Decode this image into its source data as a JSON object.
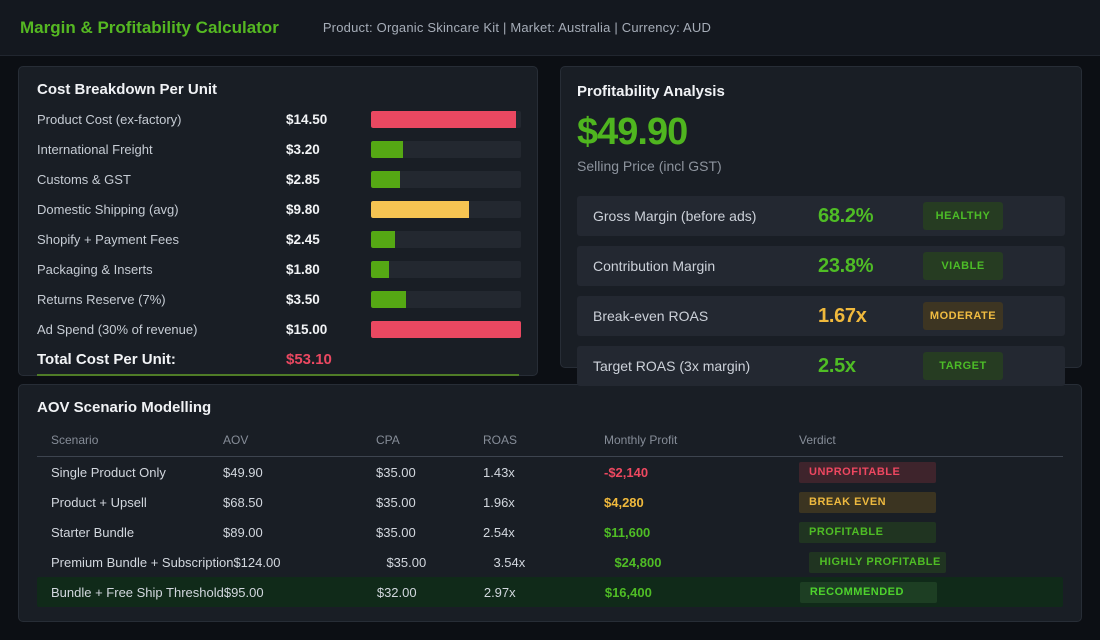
{
  "header": {
    "title": "Margin & Profitability Calculator",
    "meta": "Product: Organic Skincare Kit  |  Market: Australia  |  Currency: AUD"
  },
  "cost_panel": {
    "title": "Cost Breakdown Per Unit",
    "bar_max_value": 15.0,
    "items": [
      {
        "label": "Product Cost (ex-factory)",
        "value": "$14.50",
        "amount": 14.5,
        "pct": 96.7,
        "tone": "red"
      },
      {
        "label": "International Freight",
        "value": "$3.20",
        "amount": 3.2,
        "pct": 21.3,
        "tone": "green"
      },
      {
        "label": "Customs & GST",
        "value": "$2.85",
        "amount": 2.85,
        "pct": 19.0,
        "tone": "green"
      },
      {
        "label": "Domestic Shipping (avg)",
        "value": "$9.80",
        "amount": 9.8,
        "pct": 65.3,
        "tone": "amber"
      },
      {
        "label": "Shopify + Payment Fees",
        "value": "$2.45",
        "amount": 2.45,
        "pct": 16.3,
        "tone": "green"
      },
      {
        "label": "Packaging & Inserts",
        "value": "$1.80",
        "amount": 1.8,
        "pct": 12.0,
        "tone": "green"
      },
      {
        "label": "Returns Reserve (7%)",
        "value": "$3.50",
        "amount": 3.5,
        "pct": 23.3,
        "tone": "green"
      },
      {
        "label": "Ad Spend (30% of revenue)",
        "value": "$15.00",
        "amount": 15.0,
        "pct": 100,
        "tone": "red"
      }
    ],
    "total_label": "Total Cost Per Unit:",
    "total_value": "$53.10"
  },
  "profit_panel": {
    "title": "Profitability Analysis",
    "price": "$49.90",
    "price_sub": "Selling Price (incl GST)",
    "metrics": [
      {
        "label": "Gross Margin (before ads)",
        "value": "68.2%",
        "tone": "green",
        "badge": "HEALTHY",
        "badge_tone": "green"
      },
      {
        "label": "Contribution Margin",
        "value": "23.8%",
        "tone": "green",
        "badge": "VIABLE",
        "badge_tone": "green"
      },
      {
        "label": "Break-even ROAS",
        "value": "1.67x",
        "tone": "amber",
        "badge": "MODERATE",
        "badge_tone": "amber"
      },
      {
        "label": "Target ROAS (3x margin)",
        "value": "2.5x",
        "tone": "green",
        "badge": "TARGET",
        "badge_tone": "green"
      }
    ]
  },
  "scenario_panel": {
    "title": "AOV Scenario Modelling",
    "columns": [
      "Scenario",
      "AOV",
      "CPA",
      "ROAS",
      "Monthly Profit",
      "Verdict"
    ],
    "rows": [
      {
        "scenario": "Single Product Only",
        "aov": "$49.90",
        "cpa": "$35.00",
        "roas": "1.43x",
        "profit": "-$2,140",
        "profit_tone": "red",
        "verdict": "UNPROFITABLE",
        "verdict_tone": "red",
        "highlight": false
      },
      {
        "scenario": "Product + Upsell",
        "aov": "$68.50",
        "cpa": "$35.00",
        "roas": "1.96x",
        "profit": "$4,280",
        "profit_tone": "amber",
        "verdict": "BREAK EVEN",
        "verdict_tone": "amber",
        "highlight": false
      },
      {
        "scenario": "Starter Bundle",
        "aov": "$89.00",
        "cpa": "$35.00",
        "roas": "2.54x",
        "profit": "$11,600",
        "profit_tone": "green",
        "verdict": "PROFITABLE",
        "verdict_tone": "green",
        "highlight": false
      },
      {
        "scenario": "Premium Bundle + Subscription",
        "aov": "$124.00",
        "cpa": "$35.00",
        "roas": "3.54x",
        "profit": "$24,800",
        "profit_tone": "green",
        "verdict": "HIGHLY PROFITABLE",
        "verdict_tone": "green",
        "highlight": false
      },
      {
        "scenario": "Bundle + Free Ship Threshold",
        "aov": "$95.00",
        "cpa": "$32.00",
        "roas": "2.97x",
        "profit": "$16,400",
        "profit_tone": "green",
        "verdict": "RECOMMENDED",
        "verdict_tone": "rec",
        "highlight": true
      }
    ]
  },
  "colors": {
    "accent_green": "#55b822",
    "bar_green": "#55a814",
    "bar_amber": "#f6c452",
    "bar_red": "#ea4861",
    "value_amber": "#f0b93c",
    "value_red": "#ed4860",
    "panel_bg": "#191e25",
    "page_bg": "#0c0f14"
  }
}
